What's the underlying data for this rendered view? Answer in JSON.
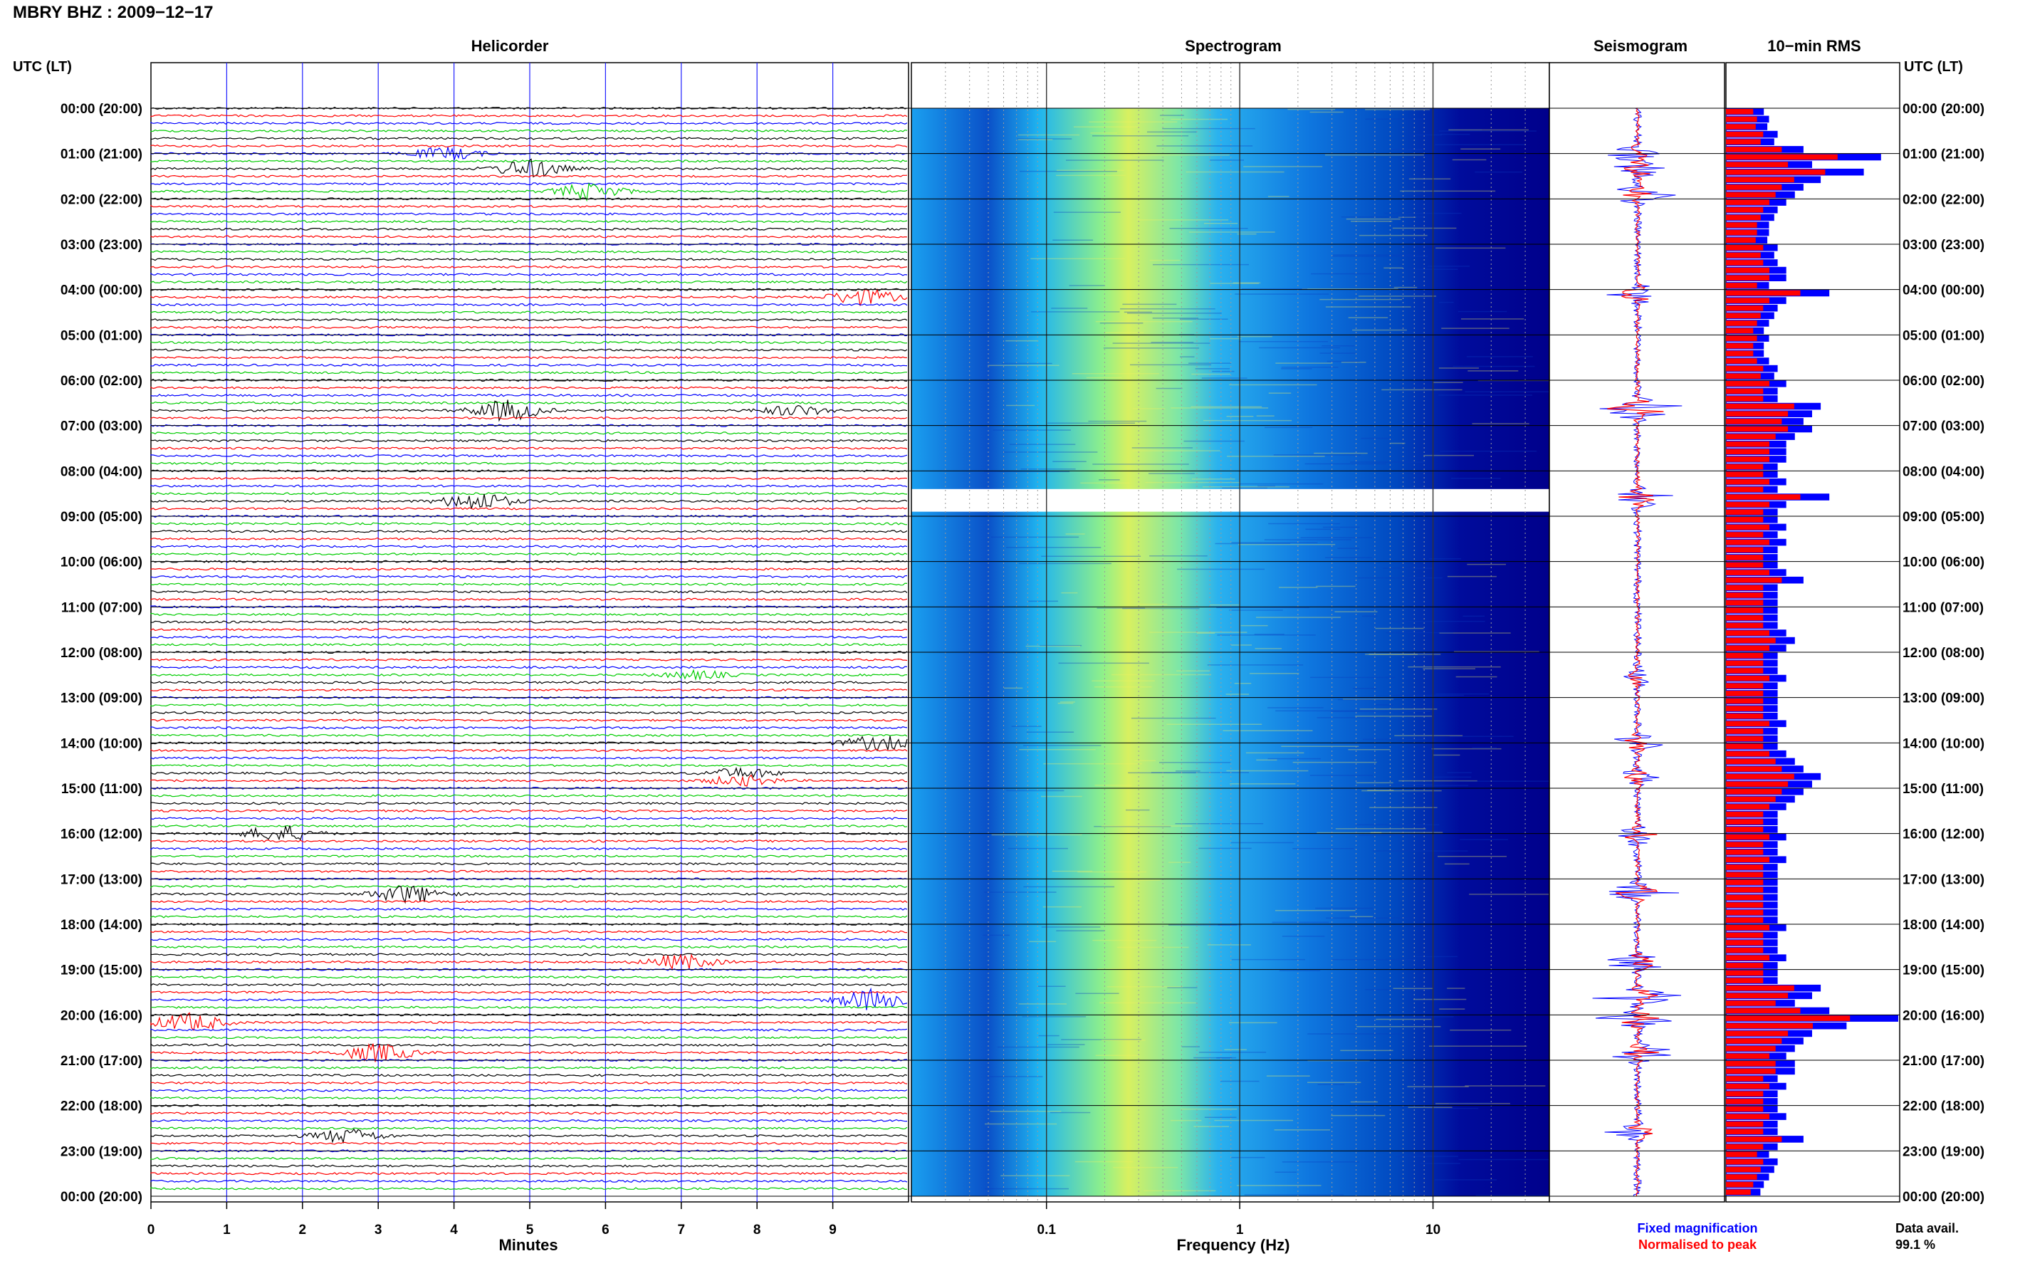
{
  "station_title": "MBRY BHZ : 2009−12−17",
  "panel_titles": {
    "helicorder": "Helicorder",
    "spectrogram": "Spectrogram",
    "seismogram": "Seismogram",
    "rms": "10−min RMS"
  },
  "axis": {
    "utc_lt": "UTC (LT)",
    "minutes_label": "Minutes",
    "frequency_label": "Frequency (Hz)"
  },
  "legend": {
    "fixed": "Fixed magnification",
    "normalised": "Normalised to peak",
    "fixed_color": "#0000ff",
    "normalised_color": "#ff0000"
  },
  "data_avail": {
    "label": "Data avail.",
    "value": "99.1 %"
  },
  "colors": {
    "trace_cycle": [
      "#000000",
      "#ff0000",
      "#0000ff",
      "#00cc00"
    ],
    "spec_low": "#00008b",
    "spec_mid": "#00a0ff",
    "spec_high": "#ffff00"
  },
  "chart_data": {
    "type": "heatmap",
    "hour_labels": [
      "00:00 (20:00)",
      "01:00 (21:00)",
      "02:00 (22:00)",
      "03:00 (23:00)",
      "04:00 (00:00)",
      "05:00 (01:00)",
      "06:00 (02:00)",
      "07:00 (03:00)",
      "08:00 (04:00)",
      "09:00 (05:00)",
      "10:00 (06:00)",
      "11:00 (07:00)",
      "12:00 (08:00)",
      "13:00 (09:00)",
      "14:00 (10:00)",
      "15:00 (11:00)",
      "16:00 (12:00)",
      "17:00 (13:00)",
      "18:00 (14:00)",
      "19:00 (15:00)",
      "20:00 (16:00)",
      "21:00 (17:00)",
      "22:00 (18:00)",
      "23:00 (19:00)",
      "00:00 (20:00)"
    ],
    "minutes_ticks": [
      "0",
      "1",
      "2",
      "3",
      "4",
      "5",
      "6",
      "7",
      "8",
      "9"
    ],
    "minutes_range": [
      0,
      10
    ],
    "frequency_ticks": [
      "0.1",
      "1",
      "10"
    ],
    "frequency_range": [
      0.02,
      40
    ],
    "frequency_scale": "log",
    "spectrogram_gap_hours": [
      8.4,
      8.9
    ],
    "helicorder_events": [
      {
        "hour": 1.0,
        "minute": 3.9,
        "amp": 0.6
      },
      {
        "hour": 1.35,
        "minute": 5.0,
        "amp": 0.9
      },
      {
        "hour": 1.9,
        "minute": 5.8,
        "amp": 0.8
      },
      {
        "hour": 4.1,
        "minute": 9.4,
        "amp": 0.8
      },
      {
        "hour": 6.6,
        "minute": 4.7,
        "amp": 1.0
      },
      {
        "hour": 6.7,
        "minute": 8.5,
        "amp": 0.5
      },
      {
        "hour": 8.6,
        "minute": 4.3,
        "amp": 0.9
      },
      {
        "hour": 12.55,
        "minute": 7.2,
        "amp": 0.4
      },
      {
        "hour": 14.0,
        "minute": 9.6,
        "amp": 0.7
      },
      {
        "hour": 14.75,
        "minute": 7.8,
        "amp": 0.5
      },
      {
        "hour": 16.05,
        "minute": 1.7,
        "amp": 0.8
      },
      {
        "hour": 17.3,
        "minute": 3.4,
        "amp": 0.9
      },
      {
        "hour": 18.85,
        "minute": 7.0,
        "amp": 0.7
      },
      {
        "hour": 19.6,
        "minute": 9.5,
        "amp": 1.0
      },
      {
        "hour": 20.1,
        "minute": 0.5,
        "amp": 0.9
      },
      {
        "hour": 20.85,
        "minute": 3.0,
        "amp": 0.9
      },
      {
        "hour": 22.6,
        "minute": 2.6,
        "amp": 0.7
      }
    ],
    "rms_fixed": [
      0.22,
      0.25,
      0.24,
      0.3,
      0.28,
      0.45,
      0.9,
      0.5,
      0.8,
      0.55,
      0.45,
      0.4,
      0.35,
      0.3,
      0.28,
      0.25,
      0.25,
      0.24,
      0.3,
      0.28,
      0.3,
      0.35,
      0.35,
      0.25,
      0.6,
      0.35,
      0.3,
      0.28,
      0.25,
      0.22,
      0.25,
      0.22,
      0.22,
      0.25,
      0.3,
      0.28,
      0.35,
      0.3,
      0.3,
      0.55,
      0.5,
      0.45,
      0.5,
      0.4,
      0.35,
      0.35,
      0.35,
      0.3,
      0.3,
      0.35,
      0.3,
      0.6,
      0.35,
      0.3,
      0.3,
      0.35,
      0.3,
      0.35,
      0.3,
      0.3,
      0.3,
      0.35,
      0.45,
      0.3,
      0.3,
      0.3,
      0.3,
      0.3,
      0.3,
      0.35,
      0.4,
      0.35,
      0.3,
      0.3,
      0.3,
      0.35,
      0.3,
      0.3,
      0.3,
      0.3,
      0.3,
      0.35,
      0.3,
      0.3,
      0.3,
      0.35,
      0.4,
      0.45,
      0.55,
      0.5,
      0.45,
      0.4,
      0.35,
      0.3,
      0.3,
      0.3,
      0.35,
      0.3,
      0.3,
      0.35,
      0.3,
      0.3,
      0.3,
      0.3,
      0.3,
      0.3,
      0.3,
      0.3,
      0.35,
      0.3,
      0.3,
      0.3,
      0.35,
      0.3,
      0.3,
      0.3,
      0.55,
      0.5,
      0.4,
      0.6,
      1.0,
      0.7,
      0.5,
      0.45,
      0.4,
      0.35,
      0.4,
      0.4,
      0.3,
      0.35,
      0.3,
      0.3,
      0.3,
      0.35,
      0.3,
      0.3,
      0.45,
      0.3,
      0.25,
      0.3,
      0.28,
      0.25,
      0.22,
      0.2
    ]
  }
}
